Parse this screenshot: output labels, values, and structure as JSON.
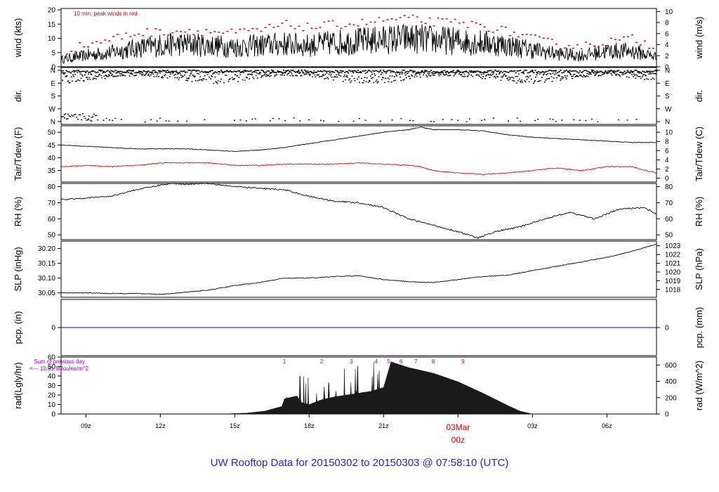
{
  "title": "UW Rooftop Data for 20150302  to  20150303 @ 07:58:10  (UTC)",
  "colors": {
    "frame": "#000000",
    "tdew": "#e00000",
    "pcp": "#0000dd",
    "peak": "#e00000",
    "annot": "#9a00c8",
    "date": "#e00000",
    "title": "#2a1fd6"
  },
  "time_axis": {
    "ticks": [
      {
        "hour": 9,
        "label": "09z"
      },
      {
        "hour": 12,
        "label": "12z"
      },
      {
        "hour": 15,
        "label": "15z"
      },
      {
        "hour": 18,
        "label": "18z"
      },
      {
        "hour": 21,
        "label": "21z"
      },
      {
        "hour": 24,
        "label": "00z",
        "date": "03Mar"
      },
      {
        "hour": 27,
        "label": "03z"
      },
      {
        "hour": 30,
        "label": "06z"
      }
    ],
    "range": [
      8.0,
      32.0
    ]
  },
  "chart_data": [
    {
      "type": "line",
      "panel": "wind",
      "ylabel": "wind (kts)",
      "ylabel_right": "wind (m/s)",
      "ylim": [
        0,
        20.5
      ],
      "ticks": [
        0,
        5,
        10,
        15,
        20
      ],
      "right_ticks": [
        0,
        2,
        4,
        6,
        8,
        10
      ],
      "right_scale": 1.9438,
      "note": "10 min. peak winds in red",
      "x": [
        8.0,
        9.0,
        10.0,
        11.0,
        12.0,
        13.0,
        14.0,
        15.0,
        16.0,
        17.0,
        18.0,
        19.0,
        20.0,
        21.0,
        22.0,
        23.0,
        24.0,
        25.0,
        26.0,
        27.0,
        28.0,
        29.0,
        30.0,
        31.0,
        32.0
      ],
      "series": [
        {
          "name": "wind",
          "values": [
            2.5,
            4,
            5,
            6.5,
            7.5,
            8,
            7.5,
            7,
            7.5,
            8,
            7.5,
            8.5,
            9,
            9.5,
            10,
            9.5,
            9,
            8.5,
            7.5,
            6,
            4.5,
            4,
            5.5,
            5.5,
            3.5
          ]
        },
        {
          "name": "10 min. peak",
          "values": [
            5.5,
            8,
            10,
            12,
            12.5,
            13,
            12.5,
            12,
            13,
            15,
            14,
            15,
            15.5,
            16.5,
            17,
            16,
            15.5,
            14.5,
            12.5,
            10,
            8,
            7.5,
            9,
            10,
            7
          ]
        }
      ]
    },
    {
      "type": "scatter",
      "panel": "dir",
      "ylabel": "dir.",
      "ylabel_right": "dir.",
      "ticks": [
        "N",
        "E",
        "S",
        "W",
        "N"
      ]
    },
    {
      "type": "line",
      "panel": "temp",
      "ylabel": "Tair/Tdew (F)",
      "ylabel_right": "Tair/Tdew (C)",
      "ylim": [
        30.5,
        52.5
      ],
      "ticks": [
        35,
        40,
        45,
        50
      ],
      "right_ticks": [
        0,
        2,
        4,
        6,
        8,
        10
      ],
      "x": [
        8.0,
        9.0,
        10.0,
        11.0,
        12.0,
        13.0,
        14.0,
        15.0,
        16.0,
        17.0,
        18.0,
        19.0,
        20.0,
        21.0,
        22.0,
        22.5,
        23.0,
        24.0,
        25.0,
        26.0,
        27.0,
        28.0,
        29.0,
        30.0,
        31.0,
        32.0
      ],
      "series": [
        {
          "name": "Tair",
          "values": [
            45,
            44.5,
            44,
            43.5,
            43.5,
            43.5,
            43,
            42.5,
            43,
            44,
            45.5,
            47,
            48.5,
            50,
            51,
            52,
            51,
            51,
            50.5,
            49,
            48,
            47.5,
            47,
            46.5,
            46,
            46
          ]
        },
        {
          "name": "Tdew",
          "values": [
            36.5,
            37,
            36.5,
            37,
            38,
            38,
            38,
            37,
            37,
            37.5,
            37.5,
            37.5,
            38,
            37.5,
            37,
            36.5,
            35,
            34,
            33.5,
            34,
            35,
            36,
            35,
            36.5,
            36.5,
            34
          ]
        }
      ]
    },
    {
      "type": "line",
      "panel": "rh",
      "ylabel": "RH (%)",
      "ylabel_right": "RH (%)",
      "ylim": [
        47,
        82
      ],
      "ticks": [
        50,
        60,
        70,
        80
      ],
      "x": [
        8.0,
        9.0,
        10.0,
        11.0,
        12.0,
        12.5,
        13.0,
        13.5,
        14.0,
        15.0,
        16.0,
        17.0,
        18.0,
        19.0,
        20.0,
        21.0,
        22.0,
        23.0,
        24.0,
        24.8,
        25.5,
        26.5,
        27.5,
        28.5,
        29.5,
        30.5,
        31.5,
        32.0
      ],
      "series": [
        {
          "name": "RH",
          "values": [
            72,
            73,
            74,
            78,
            81,
            82,
            81.5,
            82,
            82,
            80,
            79,
            78,
            74,
            71,
            70,
            67,
            60,
            56,
            52,
            48,
            52,
            55,
            60,
            64,
            60,
            66,
            67,
            63
          ]
        }
      ]
    },
    {
      "type": "line",
      "panel": "slp",
      "ylabel": "SLP (inHg)",
      "ylabel_right": "SLP (hPa)",
      "ylim": [
        30.035,
        30.225
      ],
      "ticks": [
        30.05,
        30.1,
        30.15,
        30.2
      ],
      "right_ticks": [
        1018,
        1019,
        1020,
        1021,
        1022,
        1023
      ],
      "x": [
        8.0,
        9.0,
        10.0,
        11.0,
        12.0,
        13.0,
        14.0,
        15.0,
        16.0,
        17.0,
        18.0,
        19.0,
        20.0,
        21.0,
        22.0,
        23.0,
        24.0,
        25.0,
        26.0,
        27.0,
        28.0,
        29.0,
        30.0,
        31.0,
        32.0
      ],
      "series": [
        {
          "name": "SLP",
          "values": [
            30.05,
            30.05,
            30.048,
            30.048,
            30.045,
            30.052,
            30.06,
            30.075,
            30.085,
            30.1,
            30.1,
            30.105,
            30.108,
            30.095,
            30.088,
            30.085,
            30.095,
            30.105,
            30.11,
            30.125,
            30.14,
            30.155,
            30.17,
            30.19,
            30.215
          ]
        }
      ]
    },
    {
      "type": "line",
      "panel": "pcp",
      "ylabel": "pcp. (in)",
      "ylabel_right": "pcp. (mm)",
      "ylim": [
        -1,
        1
      ],
      "ticks": [
        0
      ],
      "right_ticks": [
        0
      ],
      "x": [
        8.0,
        32.0
      ],
      "series": [
        {
          "name": "pcp",
          "values": [
            0,
            0
          ]
        }
      ]
    },
    {
      "type": "area",
      "panel": "rad",
      "ylabel": "rad(Lgly/hr)",
      "ylabel_right": "rad (W/m^2)",
      "ylim": [
        0,
        60
      ],
      "ticks": [
        0,
        10,
        20,
        30,
        40,
        50,
        60
      ],
      "right_ticks": [
        0,
        200,
        400,
        600
      ],
      "right_scale": 0.086,
      "sum_label": "Sum of previous day",
      "sum_value": "<--- 10.81 MJoules/m^2",
      "markers": [
        "1",
        "2",
        "3",
        "4",
        "5",
        "6",
        "7",
        "8",
        "9"
      ],
      "x": [
        8.0,
        14.5,
        15.5,
        16.2,
        16.9,
        17.0,
        17.5,
        17.7,
        18.0,
        18.5,
        19.0,
        19.5,
        20.0,
        20.5,
        21.0,
        21.3,
        22.0,
        23.0,
        24.0,
        25.0,
        26.0,
        26.5,
        27.0,
        32.0
      ],
      "series": [
        {
          "name": "rad",
          "values": [
            0,
            0,
            1,
            3,
            8,
            16,
            19,
            12,
            10,
            15,
            18,
            20,
            22,
            24,
            28,
            55,
            49,
            43,
            34,
            22,
            9,
            3,
            0,
            0
          ]
        }
      ]
    }
  ]
}
